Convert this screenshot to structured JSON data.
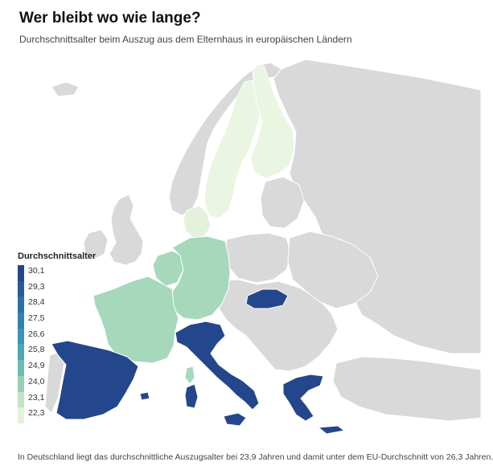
{
  "header": {
    "title": "Wer bleibt wo wie lange?",
    "subtitle": "Durchschnittsalter beim Auszug aus dem Elternhaus in europäischen Ländern"
  },
  "legend": {
    "title": "Durchschnittsalter",
    "steps": [
      {
        "label": "30,1",
        "color": "#24468c"
      },
      {
        "label": "29,3",
        "color": "#2a5a9c"
      },
      {
        "label": "28,4",
        "color": "#2d6fa9"
      },
      {
        "label": "27,5",
        "color": "#3181b3"
      },
      {
        "label": "26,6",
        "color": "#3a95b8"
      },
      {
        "label": "25,8",
        "color": "#4aa8b6"
      },
      {
        "label": "24,9",
        "color": "#6ebdb2"
      },
      {
        "label": "24,0",
        "color": "#99d0b5"
      },
      {
        "label": "23,1",
        "color": "#c2e3c4"
      },
      {
        "label": "22,3",
        "color": "#e4f2dc"
      }
    ]
  },
  "colors": {
    "no_data": "#d9d9d9",
    "border": "#ffffff",
    "spain": "#24468c",
    "italy": "#24468c",
    "slovakia": "#24468c",
    "greece": "#24468c",
    "germany": "#a6d8bc",
    "france": "#a6d8bc",
    "benelux": "#a6d8bc",
    "denmark": "#e4f2dc",
    "sweden": "#eaf5e2",
    "finland": "#eaf5e2"
  },
  "footer": {
    "text": "In Deutschland liegt das durchschnittliche Auszugsalter bei 23,9 Jahren und damit unter dem EU-Durchschnitt von 26,3 Jahren."
  }
}
